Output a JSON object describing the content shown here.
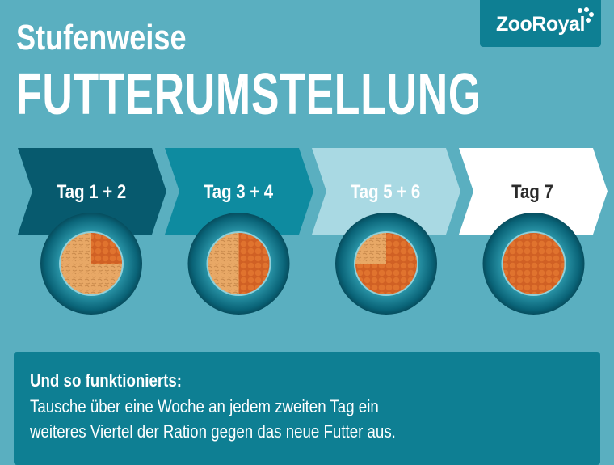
{
  "title_line1": "Stufenweise",
  "title_line2": "FUTTERUMSTELLUNG",
  "logo": "ZooRoyal",
  "steps": [
    {
      "label": "Tag 1 + 2",
      "new_food_fraction": 0.25,
      "color": "#075a6e",
      "text_color": "#ffffff"
    },
    {
      "label": "Tag 3 + 4",
      "new_food_fraction": 0.5,
      "color": "#0e8ba0",
      "text_color": "#ffffff"
    },
    {
      "label": "Tag 5 + 6",
      "new_food_fraction": 0.75,
      "color": "#a9d9e3",
      "text_color": "#ffffff"
    },
    {
      "label": "Tag 7",
      "new_food_fraction": 1.0,
      "color": "#ffffff",
      "text_color": "#2b2b2b"
    }
  ],
  "info": {
    "heading": "Und so funktionierts:",
    "line1": "Tausche über eine Woche an jedem zweiten Tag ein",
    "line2": "weiteres Viertel der Ration gegen das neue Futter aus."
  },
  "colors": {
    "background": "#5aafc0",
    "old_food": "#e8a866",
    "new_food": "#d8682a",
    "box": "#0e7f93"
  }
}
